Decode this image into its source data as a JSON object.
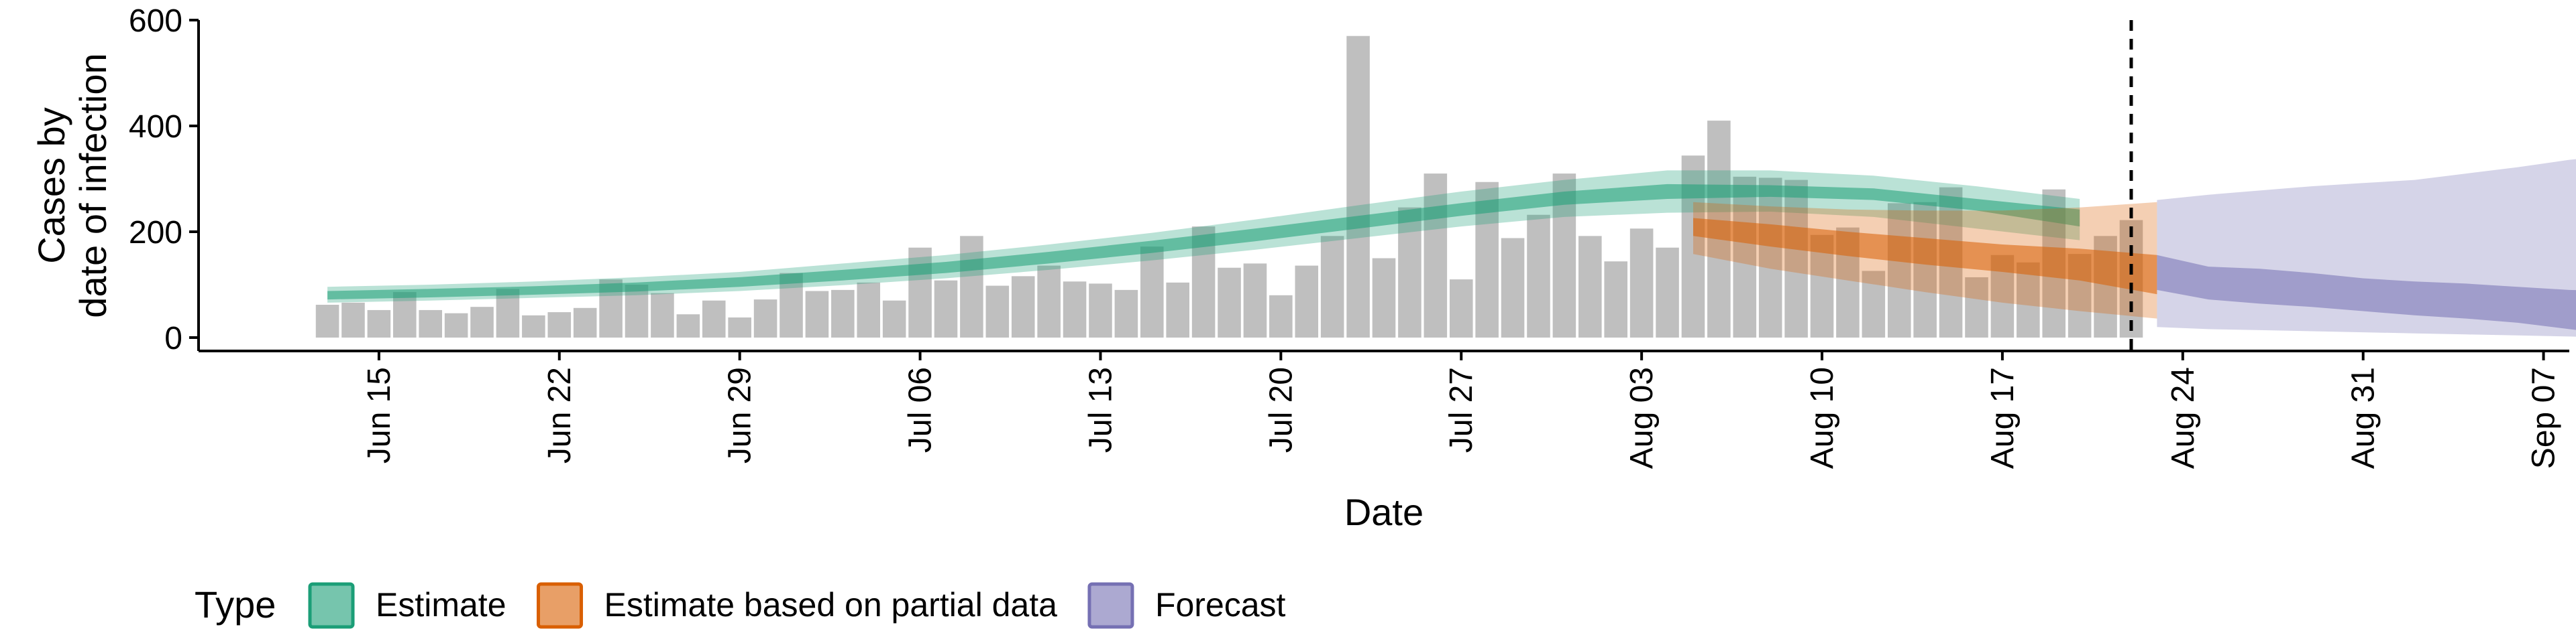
{
  "chart_data": {
    "type": "bar",
    "xlabel": "Date",
    "ylabel_lines": [
      "Cases by",
      "date of infection"
    ],
    "ylim": [
      0,
      600
    ],
    "yticks": [
      0,
      200,
      400,
      600
    ],
    "xlim": [
      "2020-06-08",
      "2020-09-08"
    ],
    "xticks": [
      {
        "date": "2020-06-15",
        "label": "Jun 15"
      },
      {
        "date": "2020-06-22",
        "label": "Jun 22"
      },
      {
        "date": "2020-06-29",
        "label": "Jun 29"
      },
      {
        "date": "2020-07-06",
        "label": "Jul 06"
      },
      {
        "date": "2020-07-13",
        "label": "Jul 13"
      },
      {
        "date": "2020-07-20",
        "label": "Jul 20"
      },
      {
        "date": "2020-07-27",
        "label": "Jul 27"
      },
      {
        "date": "2020-08-03",
        "label": "Aug 03"
      },
      {
        "date": "2020-08-10",
        "label": "Aug 10"
      },
      {
        "date": "2020-08-17",
        "label": "Aug 17"
      },
      {
        "date": "2020-08-24",
        "label": "Aug 24"
      },
      {
        "date": "2020-08-31",
        "label": "Aug 31"
      },
      {
        "date": "2020-09-07",
        "label": "Sep 07"
      }
    ],
    "vline_date": "2020-08-22",
    "bars": {
      "start_date": "2020-06-13",
      "values": [
        62,
        66,
        52,
        86,
        52,
        46,
        58,
        92,
        42,
        48,
        56,
        110,
        100,
        84,
        44,
        70,
        38,
        72,
        122,
        88,
        90,
        104,
        70,
        170,
        108,
        192,
        98,
        116,
        136,
        106,
        102,
        90,
        172,
        104,
        210,
        132,
        140,
        80,
        136,
        192,
        570,
        150,
        246,
        310,
        110,
        294,
        188,
        232,
        310,
        192,
        144,
        206,
        170,
        344,
        410,
        304,
        302,
        298,
        194,
        208,
        126,
        254,
        256,
        284,
        114,
        156,
        142,
        280,
        158,
        192,
        222
      ]
    },
    "series": [
      {
        "name": "Estimate",
        "color": "#1b9e77",
        "start_date": "2020-06-13",
        "step": 4,
        "inner": [
          [
            72,
            88
          ],
          [
            76,
            92
          ],
          [
            81,
            97
          ],
          [
            87,
            104
          ],
          [
            96,
            114
          ],
          [
            108,
            128
          ],
          [
            122,
            143
          ],
          [
            140,
            162
          ],
          [
            160,
            183
          ],
          [
            182,
            206
          ],
          [
            206,
            230
          ],
          [
            230,
            254
          ],
          [
            251,
            276
          ],
          [
            262,
            290
          ],
          [
            266,
            288
          ],
          [
            260,
            282
          ],
          [
            240,
            262
          ],
          [
            210,
            242
          ]
        ],
        "outer": [
          [
            66,
            96
          ],
          [
            70,
            100
          ],
          [
            75,
            106
          ],
          [
            80,
            114
          ],
          [
            88,
            124
          ],
          [
            99,
            140
          ],
          [
            112,
            156
          ],
          [
            128,
            176
          ],
          [
            146,
            198
          ],
          [
            166,
            223
          ],
          [
            188,
            250
          ],
          [
            210,
            276
          ],
          [
            228,
            298
          ],
          [
            236,
            316
          ],
          [
            238,
            316
          ],
          [
            228,
            306
          ],
          [
            206,
            286
          ],
          [
            184,
            262
          ]
        ]
      },
      {
        "name": "Estimate based on partial data",
        "color": "#d95f02",
        "start_date": "2020-08-05",
        "step": 3,
        "inner": [
          [
            192,
            226
          ],
          [
            172,
            214
          ],
          [
            154,
            200
          ],
          [
            138,
            188
          ],
          [
            124,
            176
          ],
          [
            108,
            168
          ],
          [
            82,
            156
          ]
        ],
        "outer": [
          [
            158,
            256
          ],
          [
            130,
            248
          ],
          [
            108,
            242
          ],
          [
            86,
            240
          ],
          [
            66,
            240
          ],
          [
            50,
            246
          ],
          [
            36,
            256
          ]
        ]
      },
      {
        "name": "Forecast",
        "color": "#7570b3",
        "start_date": "2020-08-23",
        "step": 2,
        "inner": [
          [
            90,
            156
          ],
          [
            72,
            134
          ],
          [
            64,
            130
          ],
          [
            58,
            122
          ],
          [
            50,
            112
          ],
          [
            42,
            106
          ],
          [
            36,
            102
          ],
          [
            28,
            96
          ],
          [
            16,
            90
          ],
          [
            4,
            88
          ]
        ],
        "outer": [
          [
            20,
            260
          ],
          [
            16,
            270
          ],
          [
            14,
            278
          ],
          [
            12,
            286
          ],
          [
            10,
            292
          ],
          [
            8,
            298
          ],
          [
            6,
            310
          ],
          [
            4,
            322
          ],
          [
            2,
            336
          ],
          [
            0,
            346
          ]
        ]
      }
    ],
    "legend": {
      "title": "Type",
      "position": "bottom",
      "entries": [
        {
          "label": "Estimate",
          "color": "#1b9e77"
        },
        {
          "label": "Estimate based on partial data",
          "color": "#d95f02"
        },
        {
          "label": "Forecast",
          "color": "#7570b3"
        }
      ]
    },
    "grid": false
  }
}
